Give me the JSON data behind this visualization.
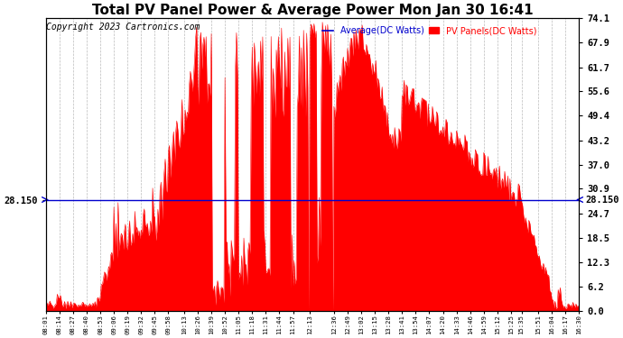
{
  "title": "Total PV Panel Power & Average Power Mon Jan 30 16:41",
  "copyright": "Copyright 2023 Cartronics.com",
  "legend_avg": "Average(DC Watts)",
  "legend_pv": "PV Panels(DC Watts)",
  "avg_value": 28.15,
  "avg_label": "28.150",
  "y_right_ticks": [
    0.0,
    6.2,
    12.3,
    18.5,
    24.7,
    30.9,
    37.0,
    43.2,
    49.4,
    55.6,
    61.7,
    67.9,
    74.1
  ],
  "ylim": [
    0.0,
    74.1
  ],
  "color_pv": "#ff0000",
  "color_avg": "#0000cd",
  "color_grid": "#aaaaaa",
  "background_color": "#ffffff",
  "title_fontsize": 11,
  "copyright_fontsize": 7,
  "legend_fontsize": 7,
  "x_tick_labels": [
    "08:01",
    "08:14",
    "08:27",
    "08:40",
    "08:53",
    "09:06",
    "09:19",
    "09:32",
    "09:45",
    "09:58",
    "10:13",
    "10:26",
    "10:39",
    "10:52",
    "11:05",
    "11:18",
    "11:31",
    "11:44",
    "11:57",
    "12:13",
    "12:36",
    "12:49",
    "13:02",
    "13:15",
    "13:28",
    "13:41",
    "13:54",
    "14:07",
    "14:20",
    "14:33",
    "14:46",
    "14:59",
    "15:12",
    "15:25",
    "15:35",
    "15:51",
    "16:04",
    "16:17",
    "16:30"
  ]
}
